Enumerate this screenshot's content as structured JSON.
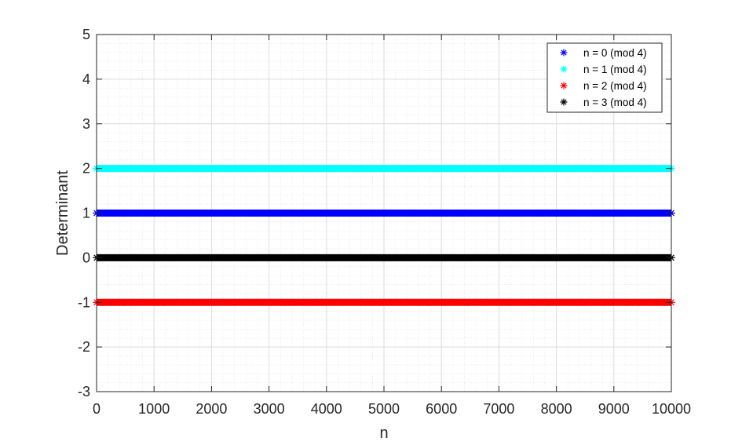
{
  "chart_data": {
    "type": "scatter",
    "title": "",
    "xlabel": "n",
    "ylabel": "Determinant",
    "xlim": [
      0,
      10000
    ],
    "ylim": [
      -3,
      5
    ],
    "xticks": [
      "0",
      "1000",
      "2000",
      "3000",
      "4000",
      "5000",
      "6000",
      "7000",
      "8000",
      "9000",
      "10000"
    ],
    "yticks": [
      "-3",
      "-2",
      "-1",
      "0",
      "1",
      "2",
      "3",
      "4",
      "5"
    ],
    "grid": "major and minor",
    "legend_position": "top-right",
    "marker": "*",
    "series": [
      {
        "name": "n = 0 (mod 4)",
        "color": "#0000ff",
        "x_range": [
          0,
          10000
        ],
        "y": 1
      },
      {
        "name": "n = 1 (mod 4)",
        "color": "#00ffff",
        "x_range": [
          1,
          9997
        ],
        "y": 2
      },
      {
        "name": "n = 2 (mod 4)",
        "color": "#ff0000",
        "x_range": [
          2,
          9998
        ],
        "y": -1
      },
      {
        "name": "n = 3 (mod 4)",
        "color": "#000000",
        "x_range": [
          3,
          9999
        ],
        "y": 0
      }
    ]
  }
}
